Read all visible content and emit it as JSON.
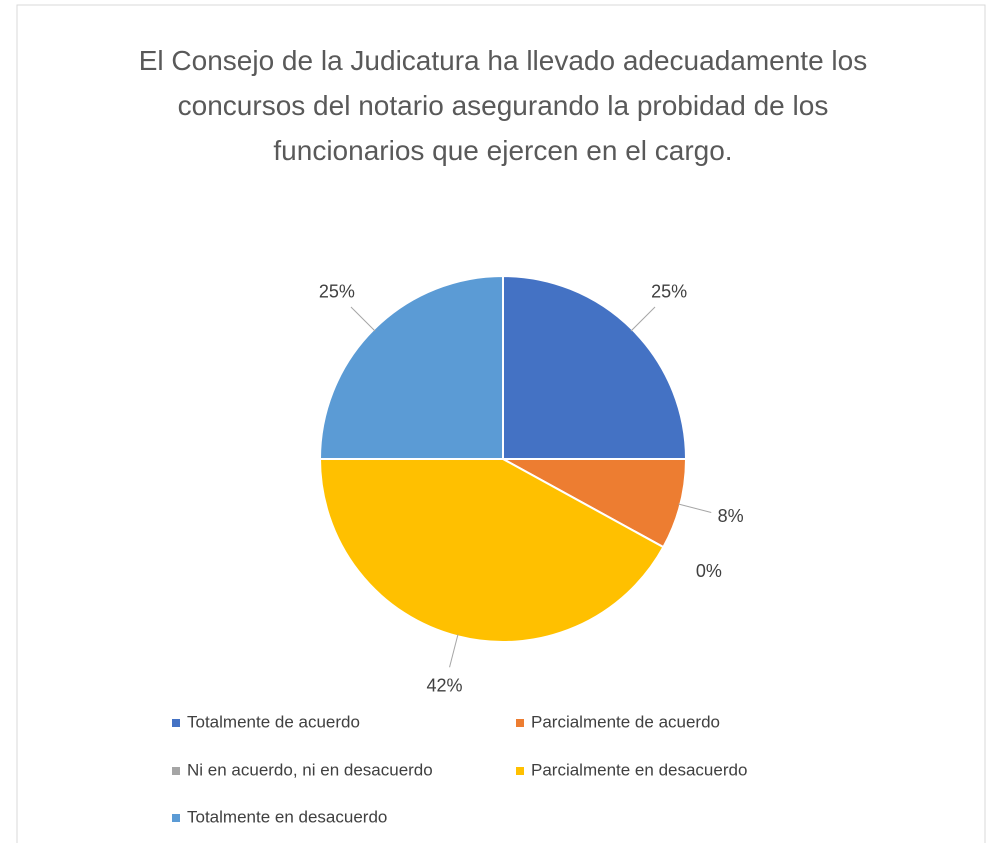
{
  "chart_data": {
    "type": "pie",
    "title": "El Consejo de la Judicatura ha llevado adecuadamente los concursos del notario asegurando la probidad de los funcionarios que ejercen en el cargo.",
    "categories": [
      "Totalmente de acuerdo",
      "Parcialmente de acuerdo",
      "Ni en acuerdo, ni en desacuerdo",
      "Parcialmente en desacuerdo",
      "Totalmente en desacuerdo"
    ],
    "values": [
      25,
      8,
      0,
      42,
      25
    ],
    "value_labels": [
      "25%",
      "8%",
      "0%",
      "42%",
      "25%"
    ],
    "colors": [
      "#4472c4",
      "#ed7d31",
      "#a5a5a5",
      "#ffc000",
      "#5b9bd5"
    ],
    "legend": "bottom"
  }
}
